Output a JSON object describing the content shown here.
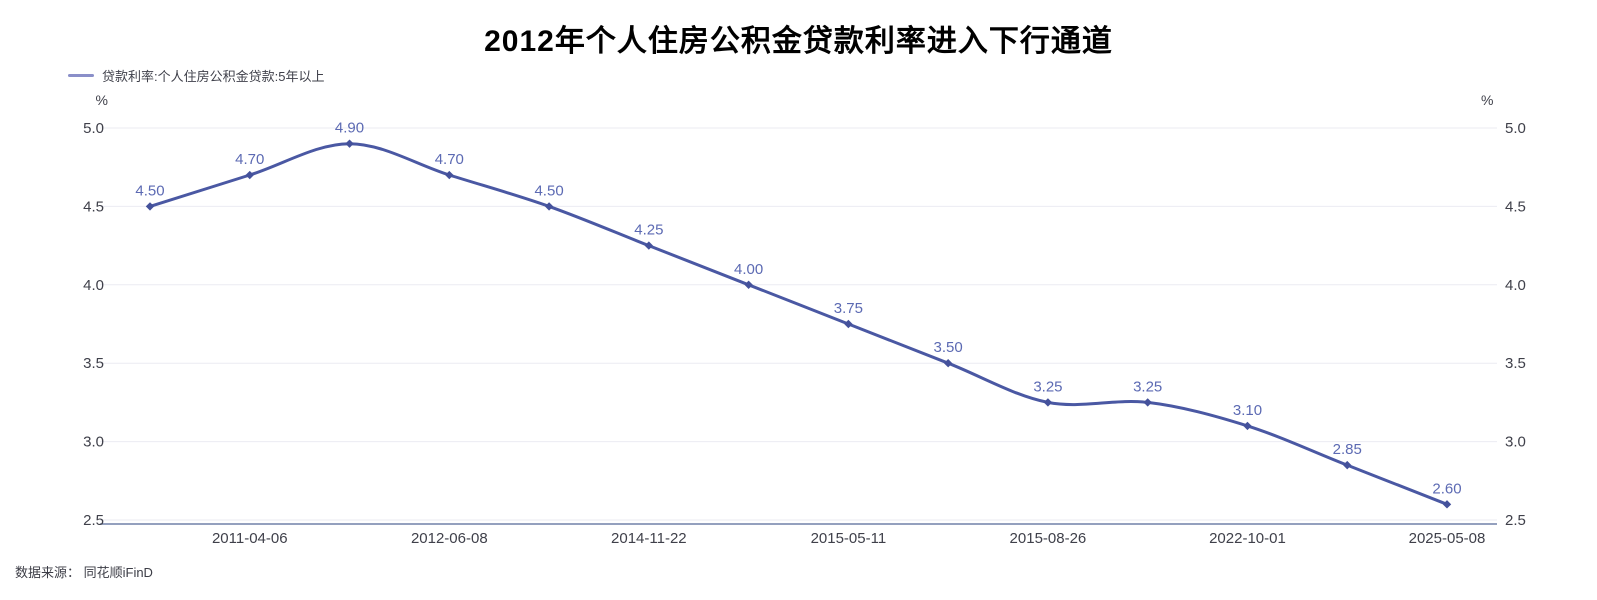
{
  "chart_data": {
    "type": "line",
    "title": "2012年个人住房公积金贷款利率进入下行通道",
    "legend": {
      "position": "top-left",
      "items": [
        "贷款利率:个人住房公积金贷款:5年以上"
      ]
    },
    "series": [
      {
        "name": "贷款利率:个人住房公积金贷款:5年以上",
        "values": [
          4.5,
          4.7,
          4.9,
          4.7,
          4.5,
          4.25,
          4.0,
          3.75,
          3.5,
          3.25,
          3.25,
          3.1,
          2.85,
          2.6
        ],
        "point_labels": [
          "4.50",
          "4.70",
          "4.90",
          "4.70",
          "4.50",
          "4.25",
          "4.00",
          "3.75",
          "3.50",
          "3.25",
          "3.25",
          "3.10",
          "2.85",
          "2.60"
        ]
      }
    ],
    "x_tick_labels": [
      "2011-04-06",
      "2012-06-08",
      "2014-11-22",
      "2015-05-11",
      "2015-08-26",
      "2022-10-01",
      "2025-05-08"
    ],
    "x_tick_point_indices": [
      1,
      3,
      5,
      7,
      9,
      11,
      13
    ],
    "y_axis": {
      "unit": "%",
      "tick_labels": [
        "5.0",
        "4.5",
        "4.0",
        "3.5",
        "3.0",
        "2.5"
      ],
      "min": 2.5,
      "max": 5.0,
      "dual_sided": true
    },
    "grid": true,
    "smooth": true,
    "marker": "diamond",
    "source": "数据来源： 同花顺iFinD",
    "colors": {
      "line": "#4a58a3",
      "marker": "#44519b",
      "point_label": "#5c6ab3",
      "legend_marker": "#8a8fc9",
      "tick_text": "#3f404a",
      "grid_line": "#ebebf2",
      "axis_line": "#7080a8",
      "title_text": "#000000"
    }
  }
}
